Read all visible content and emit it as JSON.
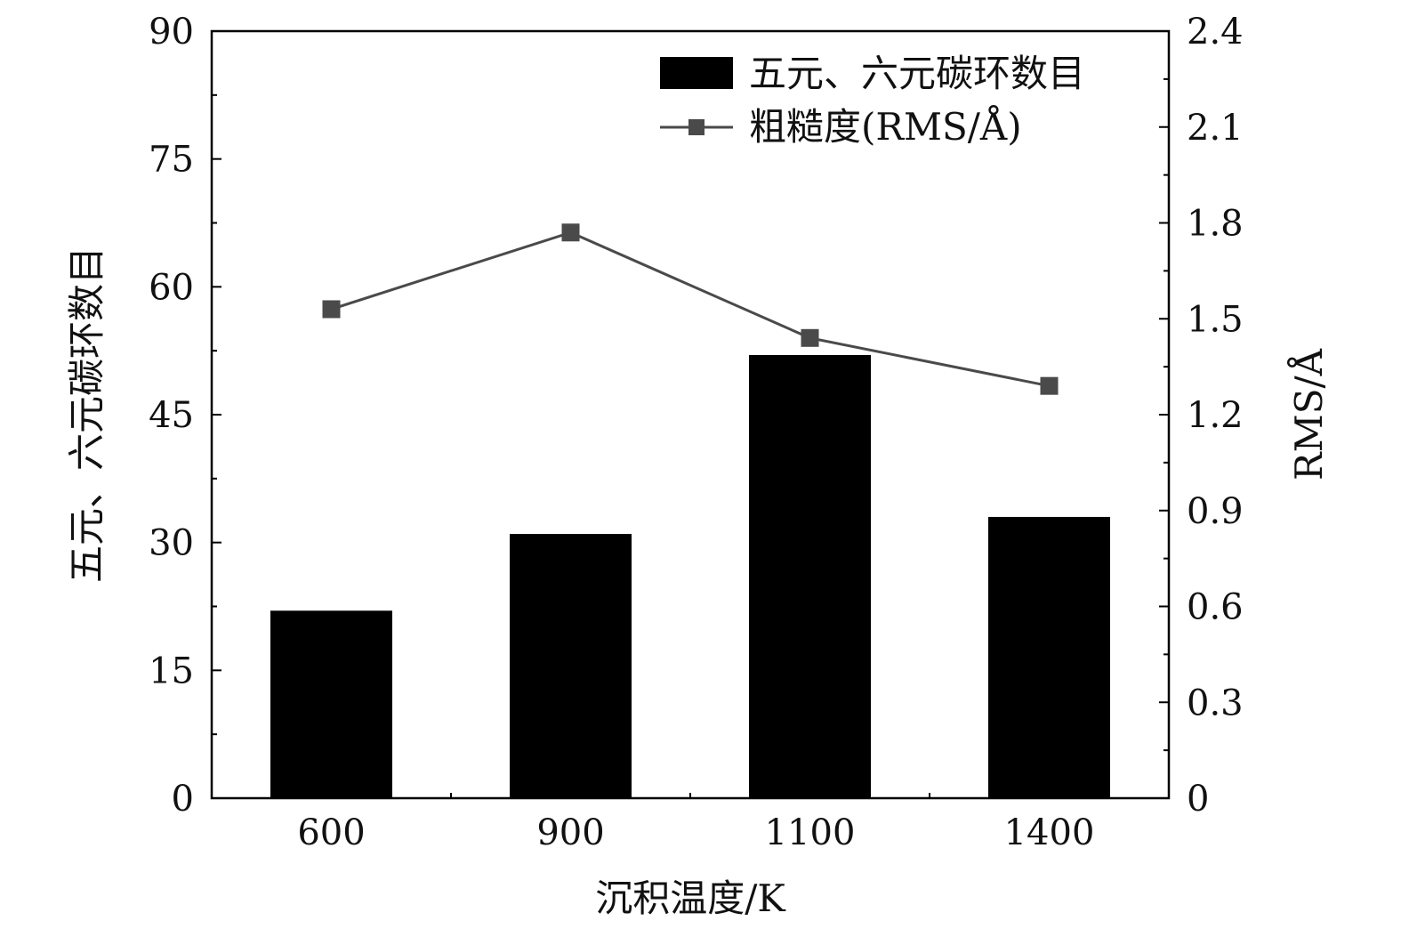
{
  "chart_data": {
    "type": "bar",
    "categories": [
      "600",
      "900",
      "1100",
      "1400"
    ],
    "series": [
      {
        "name": "五元、六元碳环数目",
        "type": "bar",
        "axis": "left",
        "values": [
          22,
          31,
          52,
          33
        ],
        "color": "#000000"
      },
      {
        "name": "粗糙度(RMS/Å)",
        "type": "line",
        "axis": "right",
        "values": [
          1.53,
          1.77,
          1.44,
          1.29
        ],
        "color": "#4a4a4a",
        "marker": "square"
      }
    ],
    "xlabel": "沉积温度/K",
    "ylabel": "五元、六元碳环数目",
    "y2label": "RMS/Å",
    "ylim": [
      0,
      90
    ],
    "y2lim": [
      0,
      2.4
    ],
    "yticks": [
      "0",
      "15",
      "30",
      "45",
      "60",
      "75",
      "90"
    ],
    "y2ticks": [
      "0",
      "0.3",
      "0.6",
      "0.9",
      "1.2",
      "1.5",
      "1.8",
      "2.1",
      "2.4"
    ],
    "grid": false,
    "legend_position": "top-right"
  }
}
